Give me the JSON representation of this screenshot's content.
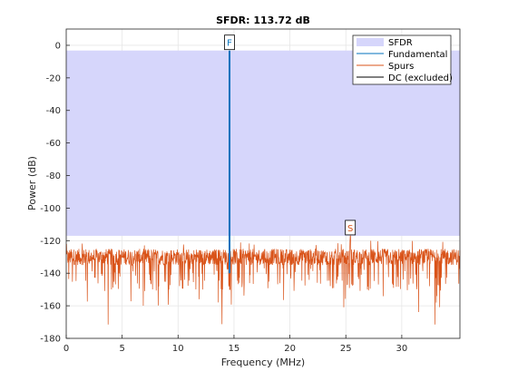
{
  "chart_data": {
    "type": "line",
    "title": "SFDR: 113.72 dB",
    "xlabel": "Frequency (MHz)",
    "ylabel": "Power (dB)",
    "xlim": [
      0,
      35.2
    ],
    "ylim": [
      -180,
      10
    ],
    "xticks": [
      0,
      5,
      10,
      15,
      20,
      25,
      30
    ],
    "yticks": [
      0,
      -20,
      -40,
      -60,
      -80,
      -100,
      -120,
      -140,
      -160,
      -180
    ],
    "grid": true,
    "legend_position": "top-right",
    "sfdr_db": 113.72,
    "sfdr_band": {
      "y_top": -3.2,
      "y_bottom": -117.0
    },
    "fundamental": {
      "freq_mhz": 14.6,
      "power_db": -3.2,
      "marker": "F"
    },
    "max_spur": {
      "freq_mhz": 25.4,
      "power_db": -117.0,
      "marker": "S"
    },
    "noise_floor": {
      "center_db": -130,
      "upper_db": -120,
      "lower_db": -172
    },
    "series": [
      {
        "name": "SFDR",
        "color": "#d6d6fb"
      },
      {
        "name": "Fundamental",
        "color": "#0072bd"
      },
      {
        "name": "Spurs",
        "color": "#d95319"
      },
      {
        "name": "DC (excluded)",
        "color": "#000000"
      }
    ]
  }
}
